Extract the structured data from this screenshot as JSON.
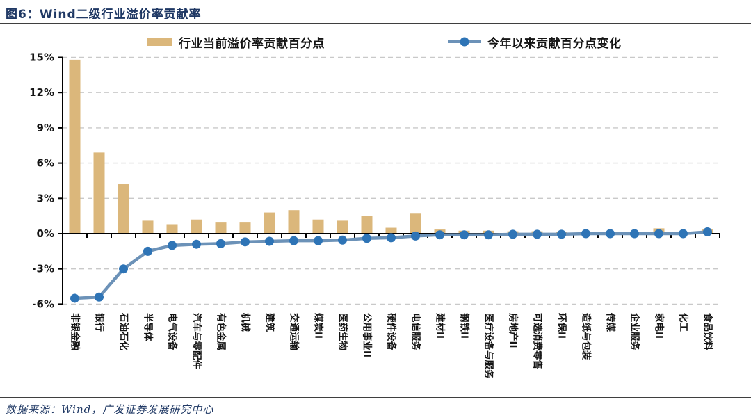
{
  "header": {
    "title": "图6：Wind二级行业溢价率贡献率"
  },
  "legend": {
    "bar_label": "行业当前溢价率贡献百分点",
    "line_label": "今年以来贡献百分点变化"
  },
  "colors": {
    "bar": "#DBB77B",
    "line": "#6C92B8",
    "marker": "#2E74B6",
    "title_navy": "#1F3864",
    "grid": "#C9C9C9",
    "axis": "#000000"
  },
  "chart_data": {
    "type": "bar+line",
    "title": "Wind二级行业溢价率贡献率",
    "categories": [
      "非银金融",
      "银行",
      "石油石化",
      "半导体",
      "电气设备",
      "汽车与零配件",
      "有色金属",
      "机械",
      "建筑",
      "交通运输",
      "煤炭II",
      "医药生物",
      "公用事业II",
      "硬件设备",
      "电信服务",
      "建材II",
      "钢铁II",
      "医疗设备与服务",
      "房地产II",
      "可选消费零售",
      "环保II",
      "造纸与包装",
      "传媒",
      "企业服务",
      "家电II",
      "化工",
      "食品饮料"
    ],
    "series": [
      {
        "name": "行业当前溢价率贡献百分点",
        "type": "bar",
        "values": [
          14.8,
          6.9,
          4.2,
          1.1,
          0.8,
          1.2,
          1.0,
          1.0,
          1.8,
          2.0,
          1.2,
          1.1,
          1.5,
          0.5,
          1.7,
          0.35,
          0.25,
          0.25,
          0.2,
          0.2,
          0.15,
          0.1,
          0.1,
          0.1,
          0.45,
          0.1,
          0.35
        ]
      },
      {
        "name": "今年以来贡献百分点变化",
        "type": "line",
        "values": [
          -5.5,
          -5.4,
          -3.0,
          -1.5,
          -1.0,
          -0.9,
          -0.85,
          -0.7,
          -0.65,
          -0.6,
          -0.6,
          -0.55,
          -0.4,
          -0.35,
          -0.2,
          -0.1,
          -0.1,
          -0.1,
          -0.05,
          -0.05,
          -0.05,
          0.0,
          0.0,
          0.0,
          0.0,
          0.0,
          0.15
        ]
      }
    ],
    "ylim": [
      -6,
      15
    ],
    "yticks": [
      15,
      12,
      9,
      6,
      3,
      0,
      -3,
      -6
    ],
    "ytick_labels": [
      "15%",
      "12%",
      "9%",
      "6%",
      "3%",
      "0%",
      "-3%",
      "-6%"
    ],
    "grid": "horizontal-dashed",
    "legend_position": "top"
  },
  "footer": {
    "source": "数据来源：Wind，广发证券发展研究中心"
  }
}
